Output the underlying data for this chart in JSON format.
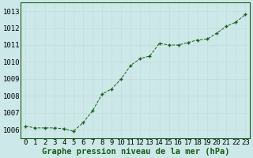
{
  "x": [
    0,
    1,
    2,
    3,
    4,
    5,
    6,
    7,
    8,
    9,
    10,
    11,
    12,
    13,
    14,
    15,
    16,
    17,
    18,
    19,
    20,
    21,
    22,
    23
  ],
  "y": [
    1006.2,
    1006.1,
    1006.1,
    1006.1,
    1006.05,
    1005.9,
    1006.4,
    1007.1,
    1008.1,
    1008.4,
    1009.0,
    1009.8,
    1010.2,
    1010.35,
    1011.1,
    1011.0,
    1011.0,
    1011.15,
    1011.3,
    1011.35,
    1011.7,
    1012.1,
    1012.35,
    1012.8
  ],
  "line_color": "#1a5c1a",
  "marker": "P",
  "marker_size": 3.0,
  "bg_color": "#cce8e8",
  "grid_color": "#b0d0d0",
  "xlabel": "Graphe pression niveau de la mer (hPa)",
  "xlabel_fontsize": 7.5,
  "tick_fontsize": 6.5,
  "ylim": [
    1005.5,
    1013.5
  ],
  "xlim": [
    -0.5,
    23.5
  ],
  "yticks": [
    1006,
    1007,
    1008,
    1009,
    1010,
    1011,
    1012,
    1013
  ],
  "xticks": [
    0,
    1,
    2,
    3,
    4,
    5,
    6,
    7,
    8,
    9,
    10,
    11,
    12,
    13,
    14,
    15,
    16,
    17,
    18,
    19,
    20,
    21,
    22,
    23
  ]
}
